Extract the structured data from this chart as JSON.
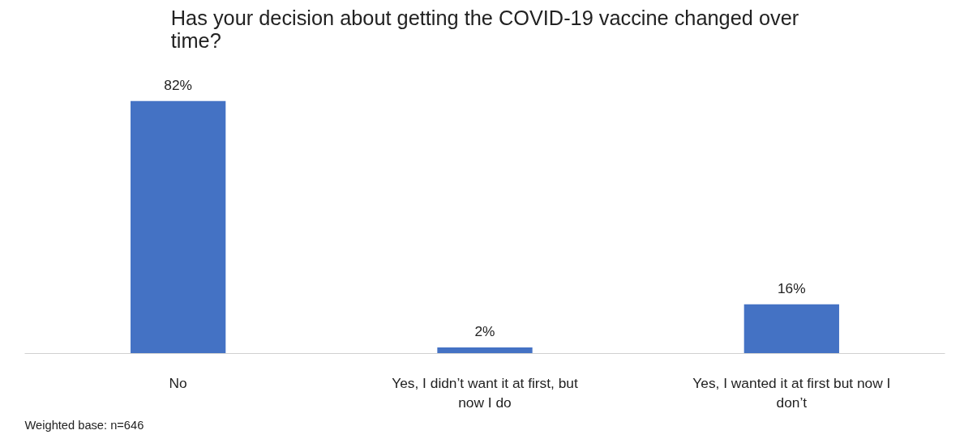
{
  "chart_data": {
    "type": "bar",
    "title": "Has your decision about getting the COVID-19 vaccine changed over time?",
    "categories": [
      "No",
      "Yes, I didn’t want it at first, but now I do",
      "Yes, I wanted it at first but now I don’t"
    ],
    "values": [
      82,
      2,
      16
    ],
    "value_labels": [
      "82%",
      "2%",
      "16%"
    ],
    "color": "#4472c4",
    "annotations": [
      "Weighted base: n=646"
    ]
  }
}
